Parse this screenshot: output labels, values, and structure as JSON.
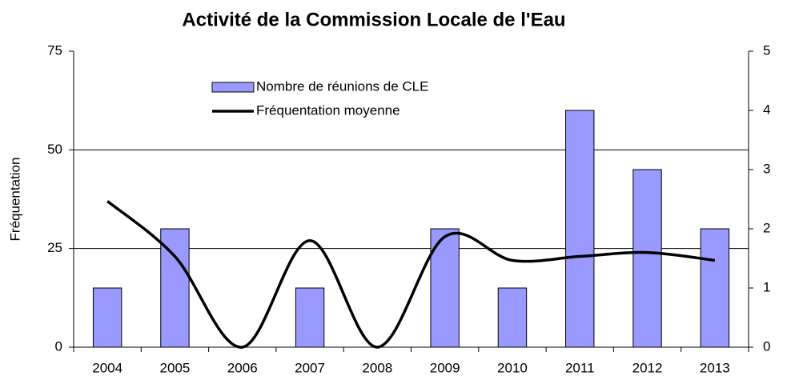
{
  "chart_data": {
    "type": "bar_line",
    "title": "Activité de la Commission Locale de l'Eau",
    "y_label": "Fréquentation",
    "categories": [
      "2004",
      "2005",
      "2006",
      "2007",
      "2008",
      "2009",
      "2010",
      "2011",
      "2012",
      "2013"
    ],
    "series": [
      {
        "name": "Nombre de réunions de CLE",
        "type": "bar",
        "color": "#9999ff",
        "axis": "y2",
        "values": [
          1,
          2,
          0,
          1,
          0,
          2,
          1,
          4,
          3,
          2
        ]
      },
      {
        "name": "Fréquentation moyenne",
        "type": "line",
        "color": "#000000",
        "axis": "y",
        "smooth": true,
        "values": [
          37,
          23,
          0,
          27,
          0,
          28,
          22,
          23,
          24,
          22
        ]
      }
    ],
    "ylim": [
      0,
      75
    ],
    "yticks": [
      0,
      25,
      50,
      75
    ],
    "y2lim": [
      0,
      5
    ],
    "y2ticks": [
      0,
      1,
      2,
      3,
      4,
      5
    ],
    "grid": true,
    "legend": "upper left"
  }
}
